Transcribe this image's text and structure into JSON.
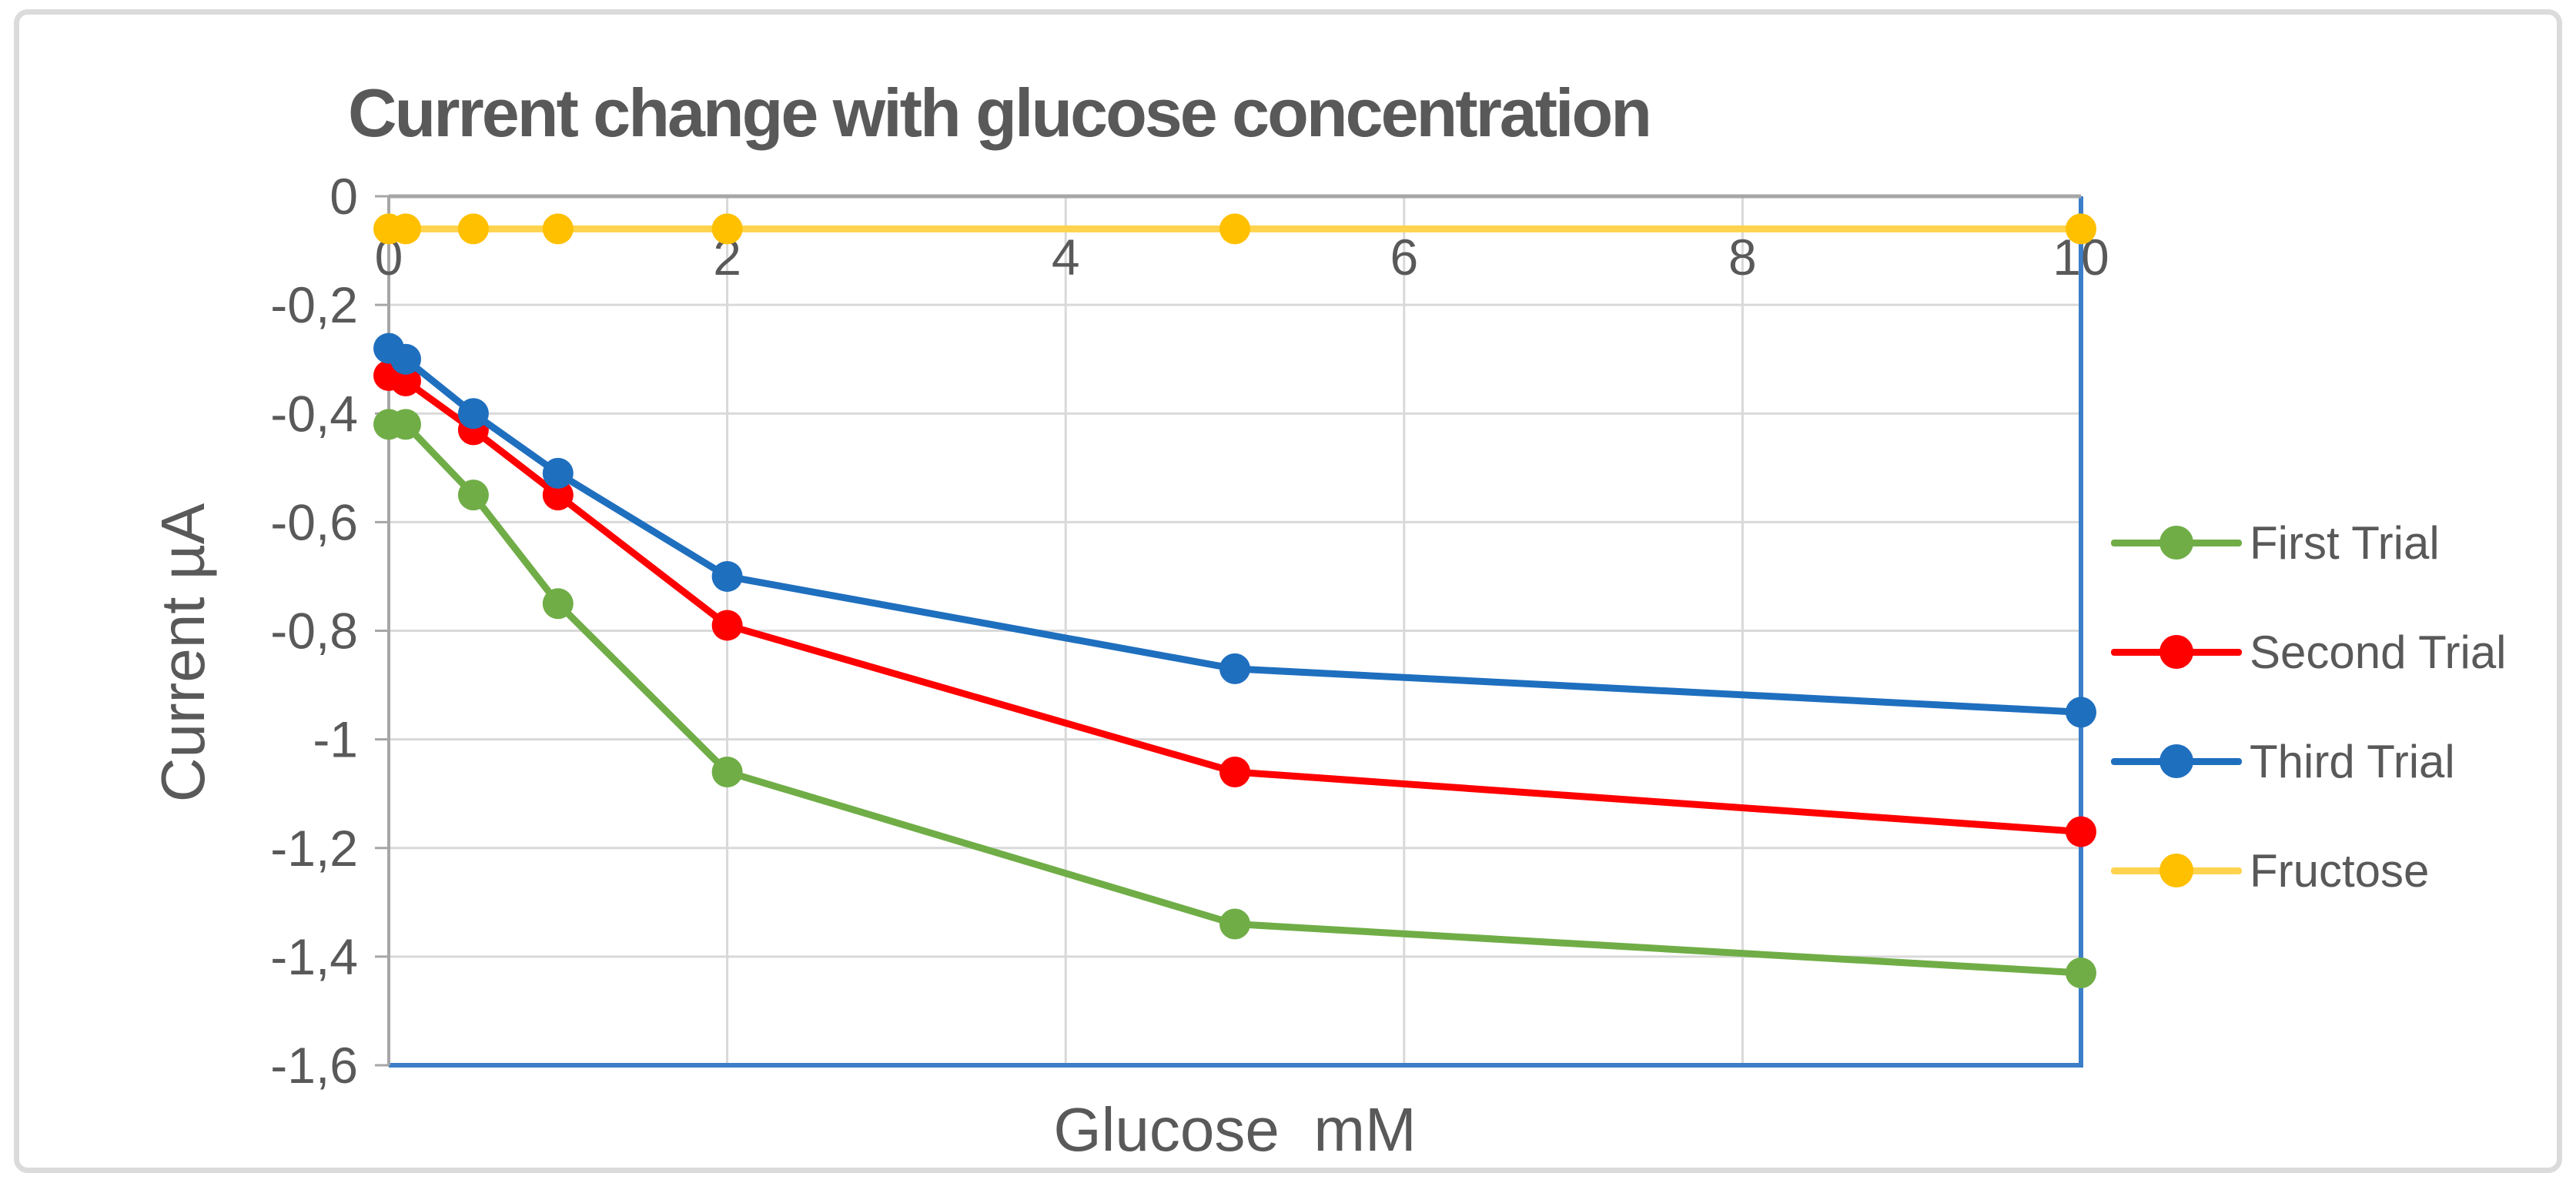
{
  "chart_data": {
    "type": "line",
    "title": "Current change with glucose concentration",
    "xlabel": "Glucose  mM",
    "ylabel": "Current µA",
    "x": [
      0,
      0.1,
      0.5,
      1,
      2,
      5,
      10
    ],
    "xlim": [
      0,
      10
    ],
    "ylim": [
      -1.6,
      0
    ],
    "grid": true,
    "legend_position": "right",
    "x_ticks": {
      "values": [
        0,
        2,
        4,
        6,
        8,
        10
      ],
      "labels": [
        "0",
        "2",
        "4",
        "6",
        "8",
        "10"
      ]
    },
    "y_ticks": {
      "values": [
        0,
        -0.2,
        -0.4,
        -0.6,
        -0.8,
        -1.0,
        -1.2,
        -1.4,
        -1.6
      ],
      "labels": [
        "0",
        "-0,2",
        "-0,4",
        "-0,6",
        "-0,8",
        "-1",
        "-1,2",
        "-1,4",
        "-1,6"
      ]
    },
    "series": [
      {
        "name": "First Trial",
        "line_color": "#70AD47",
        "marker_color": "#70AD47",
        "values": [
          -0.42,
          -0.42,
          -0.55,
          -0.75,
          -1.06,
          -1.34,
          -1.43
        ]
      },
      {
        "name": "Second Trial",
        "line_color": "#FF0000",
        "marker_color": "#FF0000",
        "values": [
          -0.33,
          -0.34,
          -0.43,
          -0.55,
          -0.79,
          -1.06,
          -1.17
        ]
      },
      {
        "name": "Third Trial",
        "line_color": "#1F6FBF",
        "marker_color": "#1F6FBF",
        "values": [
          -0.28,
          -0.3,
          -0.4,
          -0.51,
          -0.7,
          -0.87,
          -0.95
        ]
      },
      {
        "name": "Fructose",
        "line_color": "#FFD34D",
        "marker_color": "#FFC000",
        "values": [
          -0.06,
          -0.06,
          -0.06,
          -0.06,
          -0.06,
          -0.06,
          -0.06
        ]
      }
    ],
    "colors": {
      "axis": "#A6A6A6",
      "grid": "#D9D9D9",
      "text": "#595959",
      "plot_border": "#3C7EC8",
      "frame_border": "#DBDBDB"
    }
  }
}
